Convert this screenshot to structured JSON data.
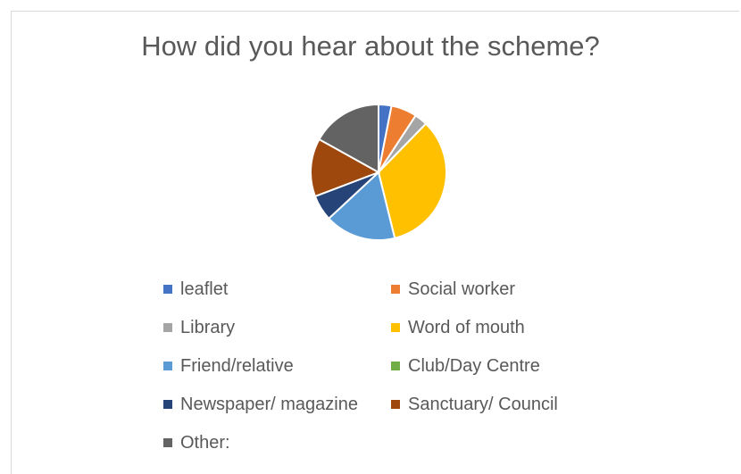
{
  "chart_data": {
    "type": "pie",
    "title": "How did you hear about the scheme?",
    "slices": [
      {
        "label": "leaflet",
        "value": 1,
        "color": "#4472C4"
      },
      {
        "label": "Social worker",
        "value": 2,
        "color": "#ED7D31"
      },
      {
        "label": "Library",
        "value": 1,
        "color": "#A5A5A5"
      },
      {
        "label": "Word of mouth",
        "value": 11,
        "color": "#FFC000"
      },
      {
        "label": "Friend/relative",
        "value": 5.5,
        "color": "#5B9BD5"
      },
      {
        "label": "Club/Day Centre",
        "value": 0,
        "color": "#70AD47"
      },
      {
        "label": "Newspaper/ magazine",
        "value": 2,
        "color": "#264478"
      },
      {
        "label": "Sanctuary/ Council",
        "value": 4.5,
        "color": "#9E480E"
      },
      {
        "label": "Other:",
        "value": 5.5,
        "color": "#636363"
      }
    ],
    "legend_position": "bottom"
  }
}
